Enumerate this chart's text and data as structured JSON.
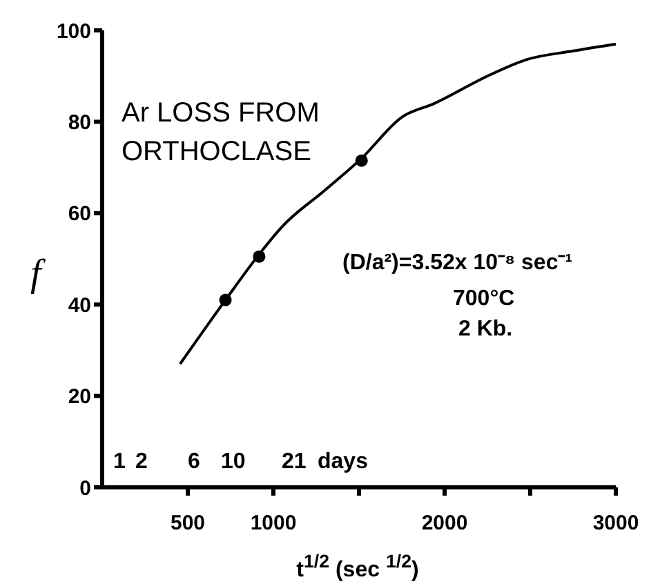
{
  "chart_data": {
    "type": "line",
    "title": "Ar LOSS FROM ORTHOCLASE",
    "xlabel": "t$^{1/2}$ (sec $^{1/2}$)",
    "ylabel": "f",
    "series": [
      {
        "color": "#000000",
        "marker": "none",
        "x": [
          455,
          720,
          917,
          1050,
          1300,
          1515,
          1750,
          1940,
          2250,
          2470,
          2750,
          3000
        ],
        "values": [
          27,
          41,
          51,
          57,
          65,
          72,
          81,
          84,
          90,
          93.5,
          95.5,
          97
        ]
      },
      {
        "type": "scatter",
        "color": "#000000",
        "marker": "circle",
        "x": [
          720,
          917,
          1515
        ],
        "values": [
          41,
          50.5,
          71.5
        ]
      }
    ],
    "xlim": [
      0,
      3000
    ],
    "xticks": [
      500,
      1000,
      {
        "value": 1500,
        "label": null
      },
      2000,
      {
        "value": 2500,
        "label": null
      },
      3000
    ],
    "ylim": [
      0,
      100
    ],
    "yticks": [
      0,
      20,
      40,
      60,
      80,
      100
    ],
    "annotations": [
      "(D/a²)=3.52x 10⁻⁸ sec⁻¹",
      "700°C",
      "2 Kb.",
      "1",
      "2",
      "6",
      "10",
      "21",
      "days"
    ]
  }
}
